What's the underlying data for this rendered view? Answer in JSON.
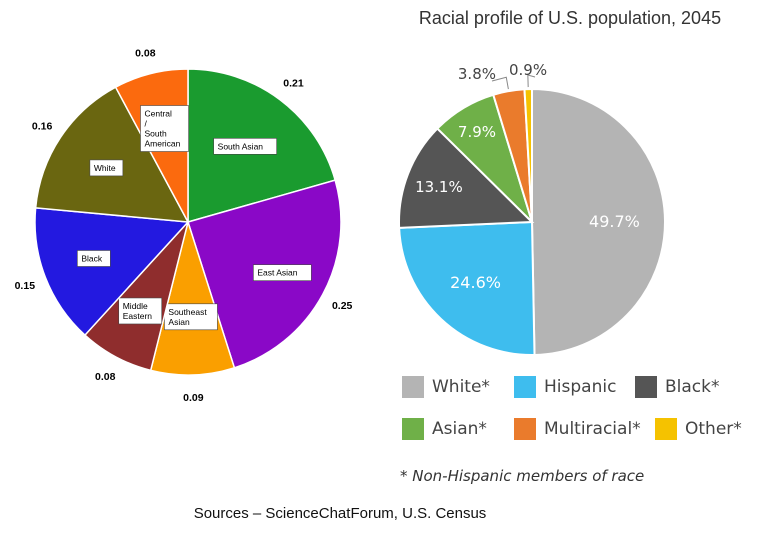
{
  "chart_data": [
    {
      "type": "pie",
      "title": "",
      "slices": [
        {
          "label": "South Asian",
          "value": 0.21,
          "value_label": "0.21",
          "color": "#1a9b2f"
        },
        {
          "label": "East Asian",
          "value": 0.25,
          "value_label": "0.25",
          "color": "#8a08c7"
        },
        {
          "label": "Southeast Asian",
          "value": 0.09,
          "value_label": "0.09",
          "color": "#fa9f00"
        },
        {
          "label": "Middle Eastern",
          "value": 0.08,
          "value_label": "0.08",
          "color": "#8f2d2d"
        },
        {
          "label": "Black",
          "value": 0.15,
          "value_label": "0.15",
          "color": "#2319e0"
        },
        {
          "label": "White",
          "value": 0.16,
          "value_label": "0.16",
          "color": "#6a6610"
        },
        {
          "label": "Central / South American",
          "value": 0.08,
          "value_label": "0.08",
          "color": "#fb6a0e"
        }
      ]
    },
    {
      "type": "pie",
      "title": "Racial profile of U.S. population, 2045",
      "slices": [
        {
          "label": "White*",
          "value": 49.7,
          "value_label": "49.7%",
          "color": "#b4b4b4"
        },
        {
          "label": "Hispanic",
          "value": 24.6,
          "value_label": "24.6%",
          "color": "#3ebdee"
        },
        {
          "label": "Black*",
          "value": 13.1,
          "value_label": "13.1%",
          "color": "#555555"
        },
        {
          "label": "Asian*",
          "value": 7.9,
          "value_label": "7.9%",
          "color": "#6fb048"
        },
        {
          "label": "Multiracial*",
          "value": 3.8,
          "value_label": "3.8%",
          "color": "#ea7b2c"
        },
        {
          "label": "Other*",
          "value": 0.9,
          "value_label": "0.9%",
          "color": "#f5c200"
        }
      ],
      "legend": [
        "White*",
        "Hispanic",
        "Black*",
        "Asian*",
        "Multiracial*",
        "Other*"
      ],
      "footnote": "* Non-Hispanic members of race"
    }
  ],
  "source_text": "Sources – ScienceChatForum, U.S. Census"
}
